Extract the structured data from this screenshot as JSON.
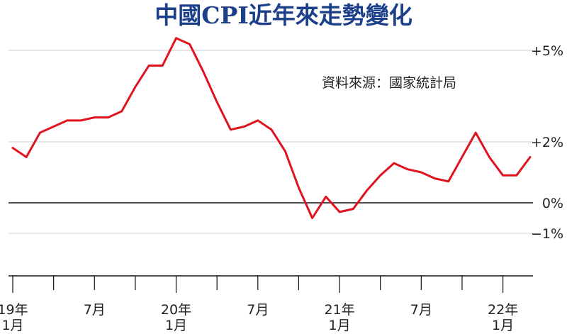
{
  "chart_data": {
    "type": "line",
    "title": "中國CPI近年來走勢變化",
    "source": "資料來源：國家統計局",
    "xlabel": "",
    "ylabel": "",
    "ylim": [
      -2.5,
      5.5
    ],
    "y_ticks": [
      {
        "value": 5,
        "label": "+5%"
      },
      {
        "value": 2,
        "label": "+2%"
      },
      {
        "value": 0,
        "label": "0%"
      },
      {
        "value": -1,
        "label": "−1%"
      }
    ],
    "x_tick_labels": [
      {
        "index": 0,
        "line1": "19年",
        "line2": "1月"
      },
      {
        "index": 6,
        "line1": "7月",
        "line2": ""
      },
      {
        "index": 12,
        "line1": "20年",
        "line2": "1月"
      },
      {
        "index": 18,
        "line1": "7月",
        "line2": ""
      },
      {
        "index": 24,
        "line1": "21年",
        "line2": "1月"
      },
      {
        "index": 30,
        "line1": "7月",
        "line2": ""
      },
      {
        "index": 36,
        "line1": "22年",
        "line2": "1月"
      }
    ],
    "series": [
      {
        "color": "#e0141e",
        "x": [
          "2019-01",
          "2019-02",
          "2019-03",
          "2019-04",
          "2019-05",
          "2019-06",
          "2019-07",
          "2019-08",
          "2019-09",
          "2019-10",
          "2019-11",
          "2019-12",
          "2020-01",
          "2020-02",
          "2020-03",
          "2020-04",
          "2020-05",
          "2020-06",
          "2020-07",
          "2020-08",
          "2020-09",
          "2020-10",
          "2020-11",
          "2020-12",
          "2021-01",
          "2021-02",
          "2021-03",
          "2021-04",
          "2021-05",
          "2021-06",
          "2021-07",
          "2021-08",
          "2021-09",
          "2021-10",
          "2021-11",
          "2021-12",
          "2022-01",
          "2022-02",
          "2022-03"
        ],
        "values": [
          1.8,
          1.5,
          2.3,
          2.5,
          2.7,
          2.7,
          2.8,
          2.8,
          3.0,
          3.8,
          4.5,
          4.5,
          5.4,
          5.2,
          4.3,
          3.3,
          2.4,
          2.5,
          2.7,
          2.4,
          1.7,
          0.5,
          -0.5,
          0.2,
          -0.3,
          -0.2,
          0.4,
          0.9,
          1.3,
          1.1,
          1.0,
          0.8,
          0.7,
          1.5,
          2.3,
          1.5,
          0.9,
          0.9,
          1.5
        ]
      }
    ]
  }
}
